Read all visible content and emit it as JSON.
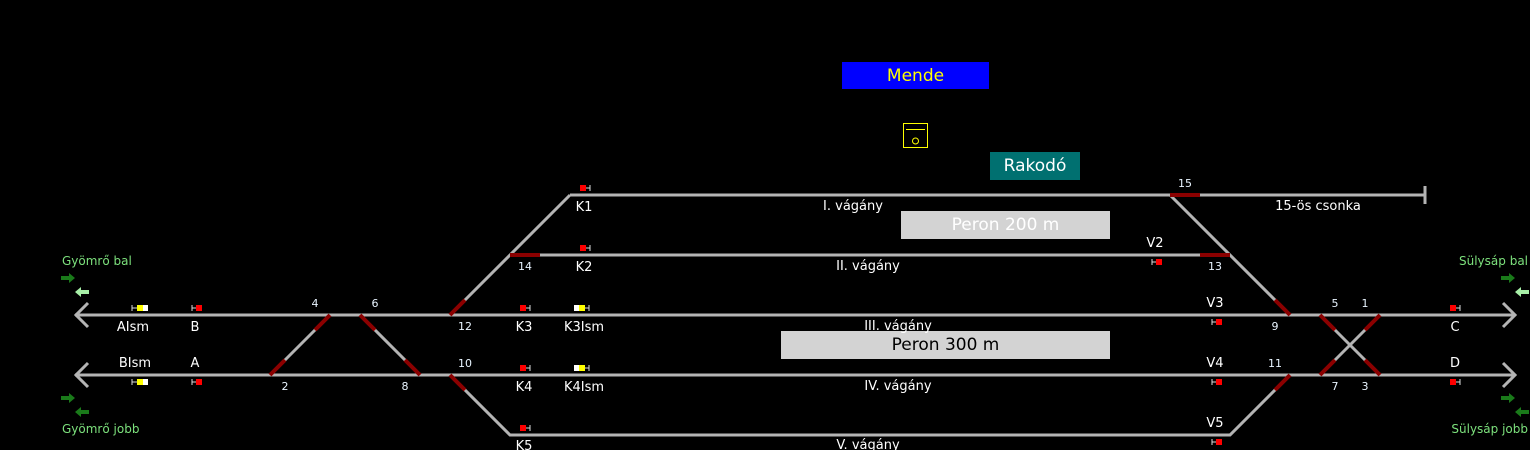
{
  "station": {
    "name": "Mende",
    "color": "#0000ff",
    "text_color": "#ffff00"
  },
  "loading": {
    "label": "Rakodó",
    "color": "#007070"
  },
  "platforms": [
    {
      "label": "Peron 200 m"
    },
    {
      "label": "Peron 300 m"
    }
  ],
  "tracks": {
    "t1": "I. vágány",
    "t2": "II. vágány",
    "t3": "III. vágány",
    "t4": "IV. vágány",
    "t5": "V. vágány",
    "stub": "15-ös csonka"
  },
  "directions": {
    "left_top": "Gyömrő bal",
    "left_bottom": "Gyömrő jobb",
    "right_top": "Sülysáp bal",
    "right_bottom": "Sülysáp jobb"
  },
  "switches": {
    "s1": "1",
    "s2": "2",
    "s3": "3",
    "s4": "4",
    "s5": "5",
    "s6": "6",
    "s7": "7",
    "s8": "8",
    "s9": "9",
    "s10": "10",
    "s11": "11",
    "s12": "12",
    "s13": "13",
    "s14": "14",
    "s15": "15"
  },
  "signals": {
    "AIsm": "AIsm",
    "BIsm": "BIsm",
    "A": "A",
    "B": "B",
    "C": "C",
    "D": "D",
    "K1": "K1",
    "K2": "K2",
    "K3": "K3",
    "K4": "K4",
    "K5": "K5",
    "K3Ism": "K3Ism",
    "K4Ism": "K4Ism",
    "V2": "V2",
    "V3": "V3",
    "V4": "V4",
    "V5": "V5"
  },
  "colors": {
    "track": "#b4b4b4",
    "occupied": "#8b0000",
    "signal_stop": "#ff0000",
    "signal_caution": "#ffff00"
  }
}
